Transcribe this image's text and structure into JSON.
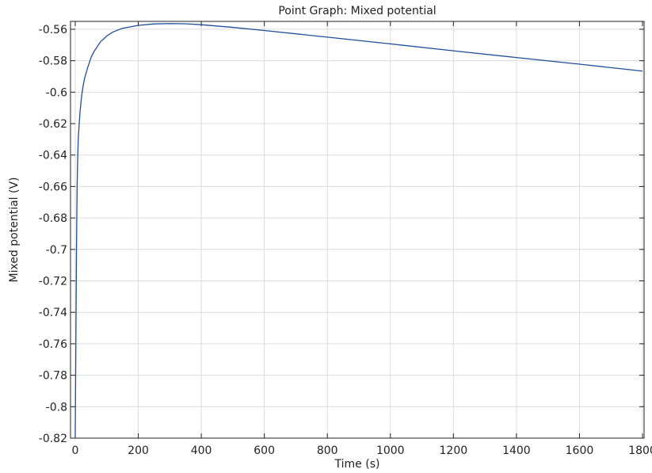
{
  "chart_data": {
    "type": "line",
    "title": "Point Graph: Mixed potential",
    "xlabel": "Time (s)",
    "ylabel": "Mixed potential (V)",
    "xlim": [
      -15,
      1805
    ],
    "ylim": [
      -0.82,
      -0.555
    ],
    "xticks": [
      0,
      200,
      400,
      600,
      800,
      1000,
      1200,
      1400,
      1600,
      1800
    ],
    "xtick_labels": [
      "0",
      "200",
      "400",
      "600",
      "800",
      "1000",
      "1200",
      "1400",
      "1600",
      "1800"
    ],
    "yticks": [
      -0.56,
      -0.58,
      -0.6,
      -0.62,
      -0.64,
      -0.66,
      -0.68,
      -0.7,
      -0.72,
      -0.74,
      -0.76,
      -0.78,
      -0.8,
      -0.82
    ],
    "ytick_labels": [
      "-0.56",
      "-0.58",
      "-0.6",
      "-0.62",
      "-0.64",
      "-0.66",
      "-0.68",
      "-0.7",
      "-0.72",
      "-0.74",
      "-0.76",
      "-0.78",
      "-0.8",
      "-0.82"
    ],
    "grid": true,
    "series": [
      {
        "color": "#1f4e9a",
        "x": [
          0,
          2,
          4,
          6,
          8,
          10,
          15,
          20,
          25,
          30,
          40,
          50,
          60,
          80,
          100,
          120,
          150,
          200,
          250,
          300,
          350,
          400,
          500,
          600,
          800,
          1000,
          1200,
          1400,
          1600,
          1800
        ],
        "y": [
          -0.82,
          -0.76,
          -0.7,
          -0.66,
          -0.64,
          -0.628,
          -0.613,
          -0.603,
          -0.596,
          -0.591,
          -0.584,
          -0.578,
          -0.574,
          -0.568,
          -0.5643,
          -0.5617,
          -0.5594,
          -0.5575,
          -0.5566,
          -0.5564,
          -0.5565,
          -0.5571,
          -0.5588,
          -0.5608,
          -0.565,
          -0.5693,
          -0.5737,
          -0.578,
          -0.5822,
          -0.5866
        ]
      }
    ]
  }
}
